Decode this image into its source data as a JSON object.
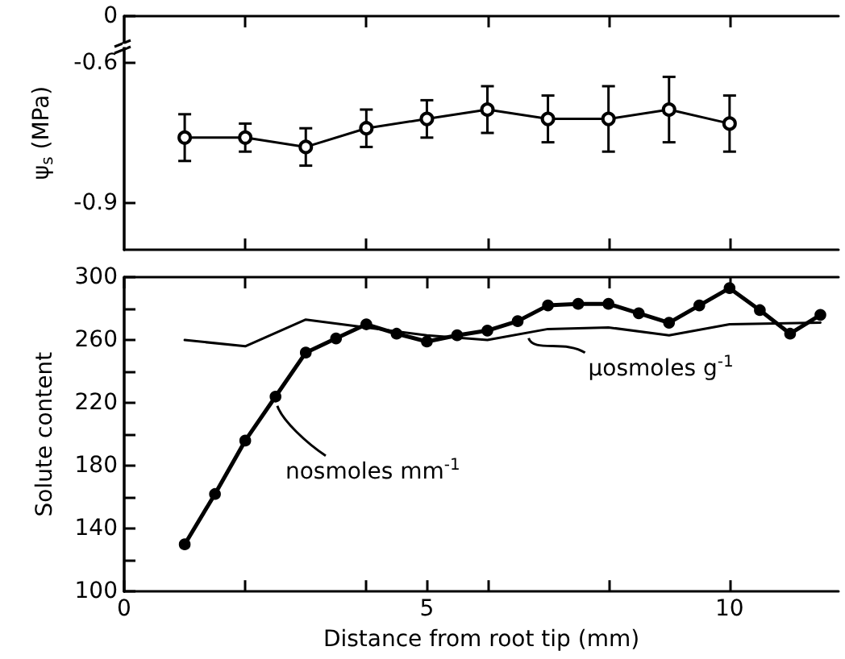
{
  "chart_data": [
    {
      "type": "line",
      "ylabel": "ψ$_{s}$ (MPa)",
      "x": [
        1,
        2,
        3,
        4,
        5,
        6,
        7,
        8,
        9,
        10
      ],
      "series": [
        {
          "color": "#000000",
          "values": [
            -0.76,
            -0.76,
            -0.78,
            -0.74,
            -0.72,
            -0.7,
            -0.72,
            -0.72,
            -0.7,
            -0.73
          ],
          "errors": [
            0.05,
            0.03,
            0.04,
            0.04,
            0.04,
            0.05,
            0.05,
            0.07,
            0.07,
            0.06
          ],
          "marker": "circle_open"
        }
      ],
      "xlim": [
        0,
        11.8
      ],
      "xticks": [
        {
          "value": 2,
          "label": null
        },
        {
          "value": 4,
          "label": null
        },
        {
          "value": 6,
          "label": null
        },
        {
          "value": 8,
          "label": null
        },
        {
          "value": 10,
          "label": null
        }
      ],
      "ylim": [
        -1.0,
        -0.5
      ],
      "yticks": [
        {
          "value": -0.5,
          "label": "0"
        },
        -0.6,
        -0.9
      ],
      "tick_labels": "y",
      "grid": false,
      "line_style": "solid"
    },
    {
      "type": "line",
      "xlabel": "Distance from root tip (mm)",
      "ylabel": "Solute content",
      "series": [
        {
          "name": "nosmoles mm$^{-1}$",
          "color": "#000000",
          "marker": "circle",
          "x": [
            1,
            1.5,
            2,
            2.5,
            3,
            3.5,
            4,
            4.5,
            5,
            5.5,
            6,
            6.5,
            7,
            7.5,
            8,
            8.5,
            9,
            9.5,
            10,
            10.5,
            11,
            11.5
          ],
          "values": [
            130,
            162,
            196,
            224,
            252,
            261,
            270,
            264,
            259,
            263,
            266,
            272,
            282,
            283,
            283,
            277,
            271,
            282,
            293,
            279,
            264,
            276
          ]
        },
        {
          "name": "µosmoles g$^{-1}$",
          "color": "#000000",
          "marker": "none",
          "x": [
            1,
            2,
            3,
            4,
            5,
            6,
            7,
            8,
            9,
            10,
            11.5
          ],
          "values": [
            260,
            256,
            273,
            268,
            263,
            260,
            267,
            268,
            263,
            270,
            271
          ]
        }
      ],
      "xlim": [
        0,
        11.8
      ],
      "xticks": [
        0,
        {
          "value": 2,
          "label": null
        },
        {
          "value": 4,
          "label": null
        },
        5,
        {
          "value": 6,
          "label": null
        },
        {
          "value": 8,
          "label": null
        },
        10
      ],
      "ylim": [
        100,
        300
      ],
      "yticks": [
        100,
        {
          "value": 120,
          "label": null
        },
        140,
        {
          "value": 160,
          "label": null
        },
        180,
        {
          "value": 200,
          "label": null
        },
        220,
        {
          "value": 240,
          "label": null
        },
        260,
        {
          "value": 280,
          "label": null
        },
        300
      ],
      "grid": false,
      "line_style": "solid"
    }
  ]
}
